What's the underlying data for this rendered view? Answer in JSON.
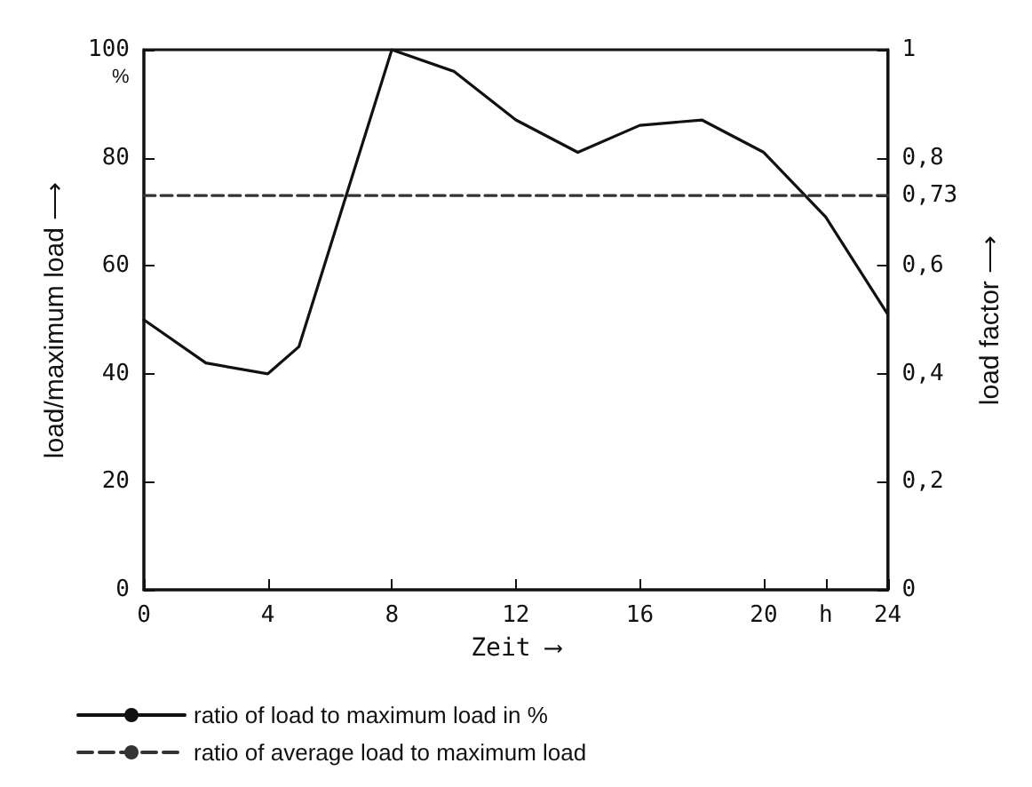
{
  "chart_data": {
    "type": "line",
    "xlabel": "Zeit ⟶",
    "ylabel": "load/maximum load ⟶",
    "y2label": "load factor ⟶",
    "series": [
      {
        "name": "ratio of load to maximum load in %",
        "color": "#111111",
        "line_style": "solid",
        "x": [
          0,
          2,
          4,
          5,
          8,
          10,
          12,
          14,
          16,
          18,
          20,
          22,
          24
        ],
        "values": [
          50,
          42,
          40,
          45,
          100,
          96,
          87,
          81,
          86,
          87,
          81,
          69,
          51
        ]
      },
      {
        "name": "ratio of average load to maximum load",
        "color": "#333333",
        "line_style": "dashed",
        "axis": "y2",
        "x": [
          0,
          24
        ],
        "values": [
          0.73,
          0.73
        ]
      }
    ],
    "xlim": [
      0,
      24
    ],
    "xticks": [
      0,
      4,
      8,
      12,
      16,
      20,
      {
        "value": 22,
        "label": "h"
      },
      24
    ],
    "ylim": [
      0,
      100
    ],
    "yticks": [
      0,
      20,
      40,
      60,
      80,
      100
    ],
    "y2lim": [
      0,
      1
    ],
    "y2ticks": [
      {
        "value": 0,
        "label": "0"
      },
      {
        "value": 0.2,
        "label": "0,2"
      },
      {
        "value": 0.4,
        "label": "0,4"
      },
      {
        "value": 0.6,
        "label": "0,6"
      },
      {
        "value": 0.73,
        "label": "0,73"
      },
      {
        "value": 0.8,
        "label": "0,8"
      },
      {
        "value": 1,
        "label": "1"
      }
    ],
    "annotations": [
      "%"
    ],
    "grid": false,
    "legend": "bottom left",
    "marker": "none"
  }
}
